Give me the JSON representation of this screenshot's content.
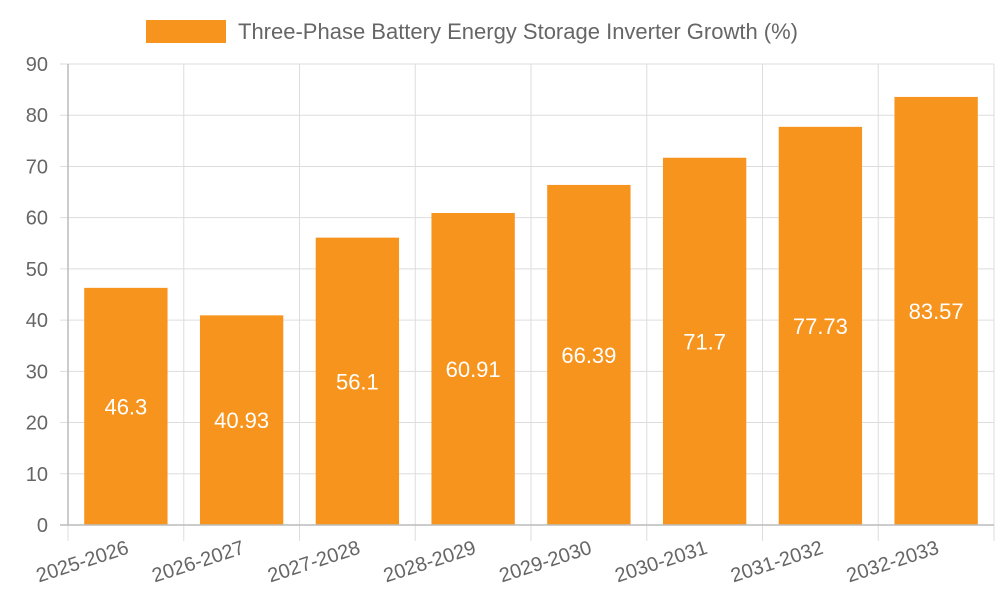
{
  "chart_data": {
    "type": "bar",
    "title": "",
    "xlabel": "",
    "ylabel": "",
    "legend_position": "top",
    "categories": [
      "2025-2026",
      "2026-2027",
      "2027-2028",
      "2028-2029",
      "2029-2030",
      "2030-2031",
      "2031-2032",
      "2032-2033"
    ],
    "series": [
      {
        "name": "Three-Phase Battery Energy Storage Inverter Growth (%)",
        "color": "#f7941d",
        "values": [
          46.3,
          40.93,
          56.1,
          60.91,
          66.39,
          71.7,
          77.73,
          83.57
        ]
      }
    ],
    "ylim": [
      0,
      90
    ],
    "yticks": [
      0,
      10,
      20,
      30,
      40,
      50,
      60,
      70,
      80,
      90
    ],
    "grid": true,
    "data_labels": true
  }
}
